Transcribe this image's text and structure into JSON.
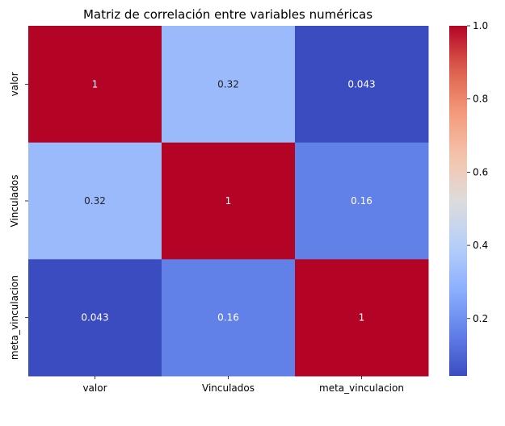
{
  "chart_data": {
    "type": "heatmap",
    "title": "Matriz de correlación entre variables numéricas",
    "xlabel": "",
    "ylabel": "",
    "x_categories": [
      "valor",
      "Vinculados",
      "meta_vinculacion"
    ],
    "y_categories": [
      "valor",
      "Vinculados",
      "meta_vinculacion"
    ],
    "values": [
      [
        1,
        0.32,
        0.043
      ],
      [
        0.32,
        1,
        0.16
      ],
      [
        0.043,
        0.16,
        1
      ]
    ],
    "cell_labels": [
      [
        "1",
        "0.32",
        "0.043"
      ],
      [
        "0.32",
        "1",
        "0.16"
      ],
      [
        "0.043",
        "0.16",
        "1"
      ]
    ],
    "colormap": "coolwarm",
    "colorbar": {
      "range": [
        0.043,
        1.0
      ],
      "ticks": [
        0.2,
        0.4,
        0.6,
        0.8,
        1.0
      ],
      "tick_labels": [
        "0.2",
        "0.4",
        "0.6",
        "0.8",
        "1.0"
      ]
    },
    "grid": false
  }
}
